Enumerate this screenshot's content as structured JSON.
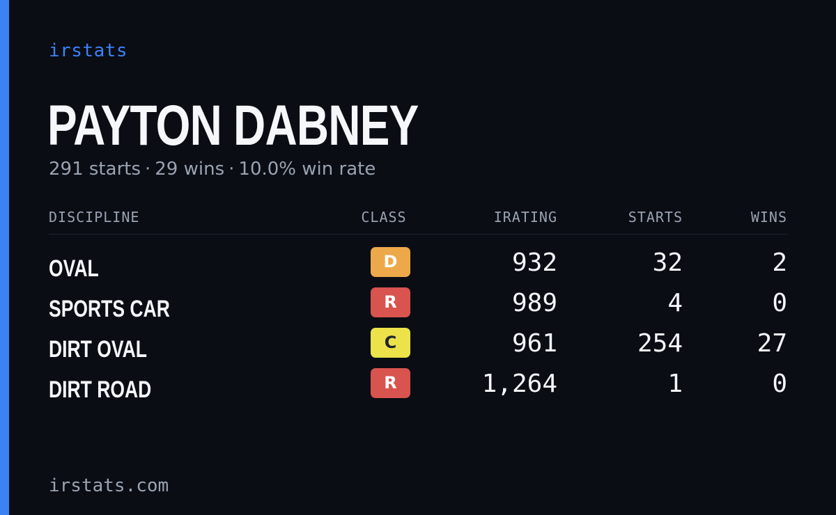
{
  "brand": "irstats",
  "player": {
    "name": "PAYTON DABNEY",
    "starts": "291 starts",
    "wins": "29 wins",
    "win_rate": "10.0% win rate",
    "separator": "·"
  },
  "table": {
    "headers": {
      "discipline": "DISCIPLINE",
      "class": "CLASS",
      "irating": "IRATING",
      "starts": "STARTS",
      "wins": "WINS"
    },
    "rows": [
      {
        "discipline": "OVAL",
        "class": "D",
        "class_bg": "#eda84a",
        "class_fg": "#ffffff",
        "irating": "932",
        "starts": "32",
        "wins": "2"
      },
      {
        "discipline": "SPORTS CAR",
        "class": "R",
        "class_bg": "#d9534f",
        "class_fg": "#ffffff",
        "irating": "989",
        "starts": "4",
        "wins": "0"
      },
      {
        "discipline": "DIRT OVAL",
        "class": "C",
        "class_bg": "#ece24a",
        "class_fg": "#1f2430",
        "irating": "961",
        "starts": "254",
        "wins": "27"
      },
      {
        "discipline": "DIRT ROAD",
        "class": "R",
        "class_bg": "#d9534f",
        "class_fg": "#ffffff",
        "irating": "1,264",
        "starts": "1",
        "wins": "0"
      }
    ]
  },
  "footer": "irstats.com",
  "colors": {
    "background": "#0a0d14",
    "accent": "#3b82f6",
    "text_primary": "#f5f7fb",
    "text_muted": "#9aa3b2"
  }
}
